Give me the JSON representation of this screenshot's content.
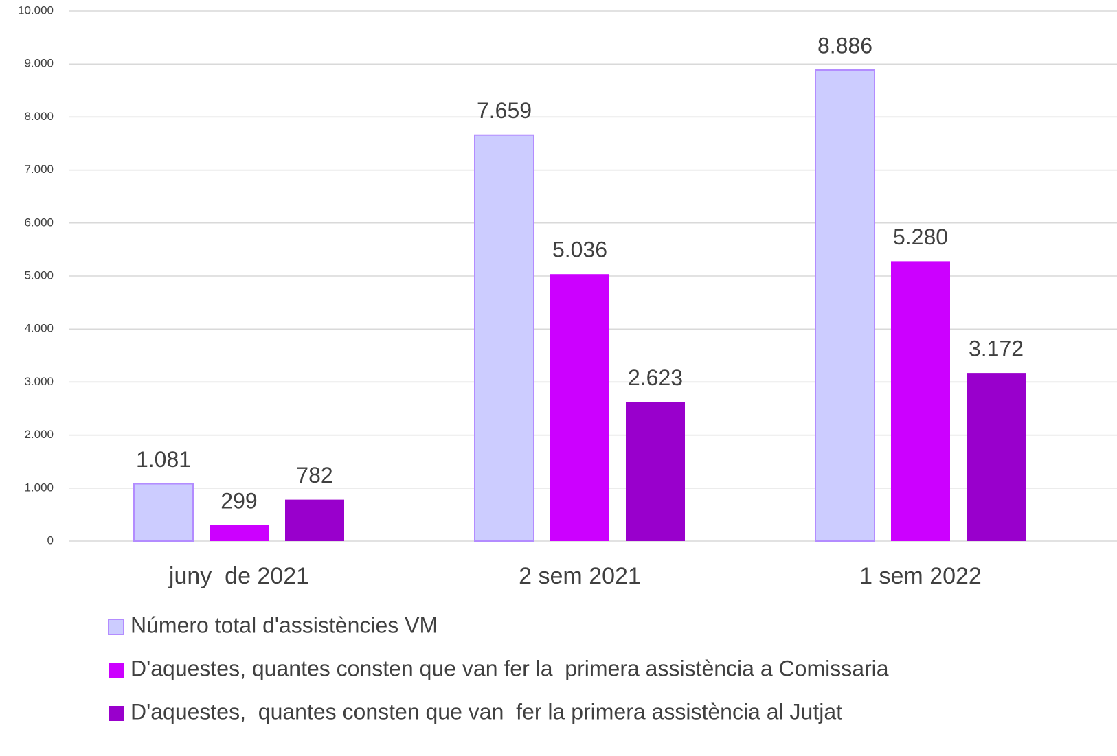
{
  "chart_data": {
    "type": "bar",
    "categories": [
      "juny  de 2021",
      "2 sem 2021",
      "1 sem 2022"
    ],
    "series": [
      {
        "name": "Número total d'assistències VM",
        "color": "#ccccff",
        "values": [
          1081,
          7659,
          8886
        ],
        "value_labels": [
          "1.081",
          "7.659",
          "8.886"
        ]
      },
      {
        "name": "D'aquestes, quantes consten que van fer la  primera assistència a Comissaria",
        "color": "#cc00ff",
        "values": [
          299,
          5036,
          5280
        ],
        "value_labels": [
          "299",
          "5.036",
          "5.280"
        ]
      },
      {
        "name": "D'aquestes,  quantes consten que van  fer la primera assistència al Jutjat",
        "color": "#9900cc",
        "values": [
          782,
          2623,
          3172
        ],
        "value_labels": [
          "782",
          "2.623",
          "3.172"
        ]
      }
    ],
    "ylim": [
      0,
      10000
    ],
    "yticks": [
      0,
      {
        "value": 1000,
        "label": "1.000"
      },
      {
        "value": 2000,
        "label": "2.000"
      },
      {
        "value": 3000,
        "label": "3.000"
      },
      {
        "value": 4000,
        "label": "4.000"
      },
      {
        "value": 5000,
        "label": "5.000"
      },
      {
        "value": 6000,
        "label": "6.000"
      },
      {
        "value": 7000,
        "label": "7.000"
      },
      {
        "value": 8000,
        "label": "8.000"
      },
      {
        "value": 9000,
        "label": "9.000"
      },
      {
        "value": 10000,
        "label": "10.000"
      }
    ],
    "grid": true
  }
}
